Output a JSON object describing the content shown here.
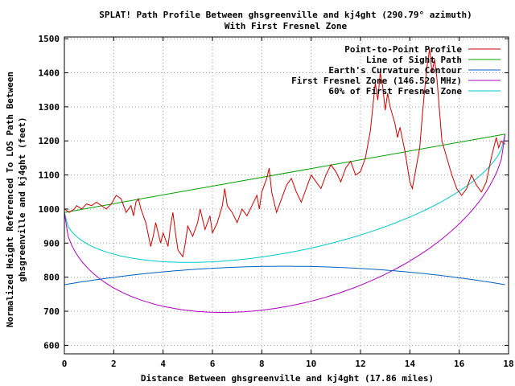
{
  "chart_data": {
    "type": "line",
    "title": "SPLAT! Path Profile Between ghsgreenville and kj4ght (290.79° azimuth)",
    "subtitle": "With First Fresnel Zone",
    "xlabel": "Distance Between ghsgreenville and kj4ght (17.86 miles)",
    "ylabel_line1": "Normalized Height Referenced To LOS Path Between",
    "ylabel_line2": "ghsgreenville and kj4ght (feet)",
    "xlim": [
      0,
      18
    ],
    "ylim": [
      575,
      1505
    ],
    "x_ticks": [
      0,
      2,
      4,
      6,
      8,
      10,
      12,
      14,
      16,
      18
    ],
    "y_ticks": [
      600,
      700,
      800,
      900,
      1000,
      1100,
      1200,
      1300,
      1400,
      1500
    ],
    "grid": true,
    "legend_position": "top-right",
    "series": [
      {
        "name": "Point-to-Point Profile",
        "color": "#cc0000",
        "points": [
          [
            0,
            1000
          ],
          [
            0.2,
            990
          ],
          [
            0.4,
            1000
          ],
          [
            0.5,
            1010
          ],
          [
            0.7,
            1000
          ],
          [
            0.9,
            1015
          ],
          [
            1.1,
            1010
          ],
          [
            1.3,
            1020
          ],
          [
            1.5,
            1010
          ],
          [
            1.7,
            1000
          ],
          [
            1.9,
            1015
          ],
          [
            2.1,
            1040
          ],
          [
            2.3,
            1030
          ],
          [
            2.5,
            990
          ],
          [
            2.7,
            1010
          ],
          [
            2.8,
            980
          ],
          [
            2.9,
            1020
          ],
          [
            3.0,
            1030
          ],
          [
            3.1,
            1000
          ],
          [
            3.3,
            960
          ],
          [
            3.5,
            890
          ],
          [
            3.6,
            920
          ],
          [
            3.7,
            960
          ],
          [
            3.9,
            900
          ],
          [
            4.0,
            930
          ],
          [
            4.2,
            890
          ],
          [
            4.3,
            950
          ],
          [
            4.4,
            990
          ],
          [
            4.5,
            930
          ],
          [
            4.6,
            880
          ],
          [
            4.8,
            860
          ],
          [
            4.9,
            900
          ],
          [
            5.0,
            950
          ],
          [
            5.2,
            920
          ],
          [
            5.4,
            960
          ],
          [
            5.5,
            1000
          ],
          [
            5.7,
            940
          ],
          [
            5.9,
            980
          ],
          [
            6.0,
            930
          ],
          [
            6.2,
            960
          ],
          [
            6.4,
            1010
          ],
          [
            6.5,
            1060
          ],
          [
            6.6,
            1010
          ],
          [
            6.8,
            990
          ],
          [
            7.0,
            960
          ],
          [
            7.2,
            1000
          ],
          [
            7.4,
            980
          ],
          [
            7.6,
            1010
          ],
          [
            7.8,
            1040
          ],
          [
            7.9,
            1000
          ],
          [
            8.0,
            1050
          ],
          [
            8.2,
            1090
          ],
          [
            8.3,
            1120
          ],
          [
            8.4,
            1050
          ],
          [
            8.6,
            990
          ],
          [
            8.8,
            1030
          ],
          [
            9.0,
            1070
          ],
          [
            9.2,
            1090
          ],
          [
            9.4,
            1050
          ],
          [
            9.6,
            1020
          ],
          [
            9.8,
            1060
          ],
          [
            10.0,
            1100
          ],
          [
            10.2,
            1080
          ],
          [
            10.4,
            1060
          ],
          [
            10.6,
            1100
          ],
          [
            10.8,
            1130
          ],
          [
            11.0,
            1110
          ],
          [
            11.2,
            1080
          ],
          [
            11.4,
            1120
          ],
          [
            11.6,
            1140
          ],
          [
            11.8,
            1100
          ],
          [
            12.0,
            1110
          ],
          [
            12.2,
            1150
          ],
          [
            12.4,
            1230
          ],
          [
            12.5,
            1300
          ],
          [
            12.6,
            1370
          ],
          [
            12.7,
            1320
          ],
          [
            12.8,
            1400
          ],
          [
            12.9,
            1360
          ],
          [
            13.0,
            1290
          ],
          [
            13.1,
            1340
          ],
          [
            13.2,
            1300
          ],
          [
            13.4,
            1250
          ],
          [
            13.5,
            1210
          ],
          [
            13.6,
            1240
          ],
          [
            13.8,
            1170
          ],
          [
            14.0,
            1080
          ],
          [
            14.1,
            1060
          ],
          [
            14.2,
            1100
          ],
          [
            14.4,
            1180
          ],
          [
            14.5,
            1270
          ],
          [
            14.6,
            1350
          ],
          [
            14.7,
            1420
          ],
          [
            14.8,
            1470
          ],
          [
            14.9,
            1400
          ],
          [
            15.0,
            1440
          ],
          [
            15.1,
            1380
          ],
          [
            15.2,
            1290
          ],
          [
            15.3,
            1200
          ],
          [
            15.5,
            1150
          ],
          [
            15.7,
            1100
          ],
          [
            15.9,
            1060
          ],
          [
            16.1,
            1040
          ],
          [
            16.3,
            1060
          ],
          [
            16.5,
            1100
          ],
          [
            16.7,
            1070
          ],
          [
            16.9,
            1050
          ],
          [
            17.1,
            1080
          ],
          [
            17.3,
            1150
          ],
          [
            17.5,
            1210
          ],
          [
            17.6,
            1180
          ],
          [
            17.7,
            1200
          ],
          [
            17.86,
            1190
          ]
        ]
      },
      {
        "name": "Line of Sight Path",
        "color": "#00a000",
        "points": [
          [
            0,
            990
          ],
          [
            17.86,
            1220
          ]
        ]
      },
      {
        "name": "Earth's Curvature Contour",
        "color": "#0060c0",
        "function": "arc",
        "endpoints": [
          [
            0,
            778
          ],
          [
            17.86,
            778
          ]
        ],
        "mid_value": 832
      },
      {
        "name": "First Fresnel Zone (146.520 MHz)",
        "color": "#b000c0",
        "function": "fresnel",
        "max_depth": 392
      },
      {
        "name": "60% of First Fresnel Zone",
        "color": "#00c8c8",
        "function": "fresnel",
        "max_depth": 235
      }
    ]
  }
}
